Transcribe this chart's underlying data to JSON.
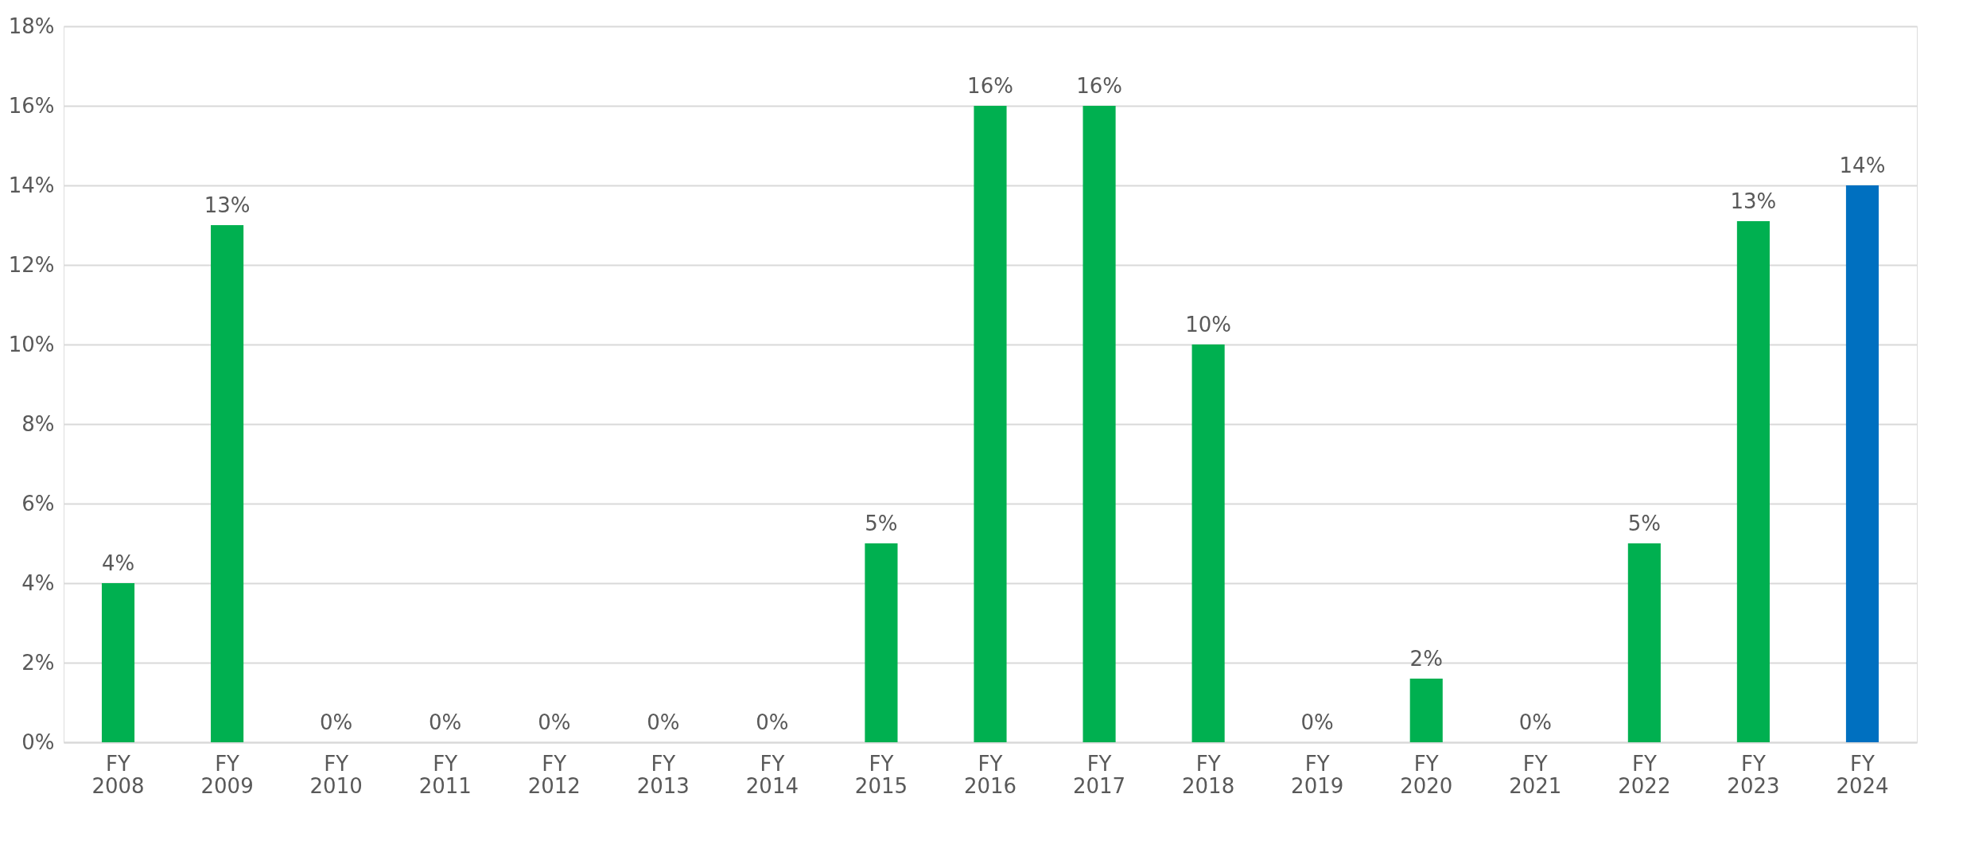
{
  "chart_data": {
    "type": "bar",
    "categories": [
      "FY 2008",
      "FY 2009",
      "FY 2010",
      "FY 2011",
      "FY 2012",
      "FY 2013",
      "FY 2014",
      "FY 2015",
      "FY 2016",
      "FY 2017",
      "FY 2018",
      "FY 2019",
      "FY 2020",
      "FY 2021",
      "FY 2022",
      "FY 2023",
      "FY 2024"
    ],
    "values": [
      4,
      13,
      0,
      0,
      0,
      0,
      0,
      5,
      16,
      16,
      10,
      0,
      1.6,
      0,
      5,
      13.1,
      14
    ],
    "value_labels": [
      "4%",
      "13%",
      "0%",
      "0%",
      "0%",
      "0%",
      "0%",
      "5%",
      "16%",
      "16%",
      "10%",
      "0%",
      "2%",
      "0%",
      "5%",
      "13%",
      "14%"
    ],
    "colors": [
      "#00b050",
      "#00b050",
      "#00b050",
      "#00b050",
      "#00b050",
      "#00b050",
      "#00b050",
      "#00b050",
      "#00b050",
      "#00b050",
      "#00b050",
      "#00b050",
      "#00b050",
      "#00b050",
      "#00b050",
      "#00b050",
      "#0070c0"
    ],
    "ylim": [
      0,
      18
    ],
    "yticks": [
      {
        "value": 0,
        "label": "0%"
      },
      {
        "value": 2,
        "label": "2%"
      },
      {
        "value": 4,
        "label": "4%"
      },
      {
        "value": 6,
        "label": "6%"
      },
      {
        "value": 8,
        "label": "8%"
      },
      {
        "value": 10,
        "label": "10%"
      },
      {
        "value": 12,
        "label": "12%"
      },
      {
        "value": 14,
        "label": "14%"
      },
      {
        "value": 16,
        "label": "16%"
      },
      {
        "value": 18,
        "label": "18%"
      }
    ],
    "grid": "y"
  }
}
